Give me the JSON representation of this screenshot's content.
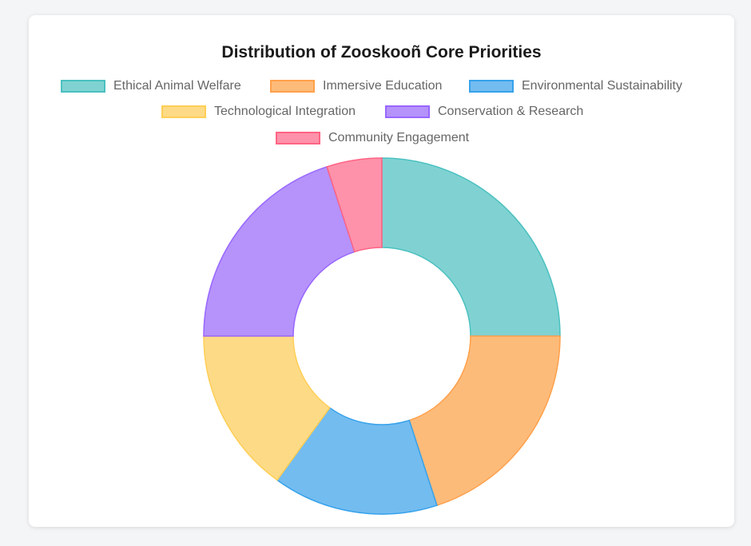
{
  "chart_data": {
    "type": "doughnut",
    "title": "Distribution of Zooskooñ Core Priorities",
    "categories": [
      "Ethical Animal Welfare",
      "Immersive Education",
      "Environmental Sustainability",
      "Technological Integration",
      "Conservation & Research",
      "Community Engagement"
    ],
    "values": [
      25,
      20,
      15,
      15,
      20,
      5
    ],
    "colors": [
      "#80d2d2",
      "#fdbb7a",
      "#73bcf0",
      "#fdda86",
      "#b593fb",
      "#fd92aa"
    ],
    "border_colors": [
      "#4bc0c0",
      "#ffa04a",
      "#36a2eb",
      "#ffce56",
      "#9966ff",
      "#ff6384"
    ],
    "legend_position": "top"
  }
}
